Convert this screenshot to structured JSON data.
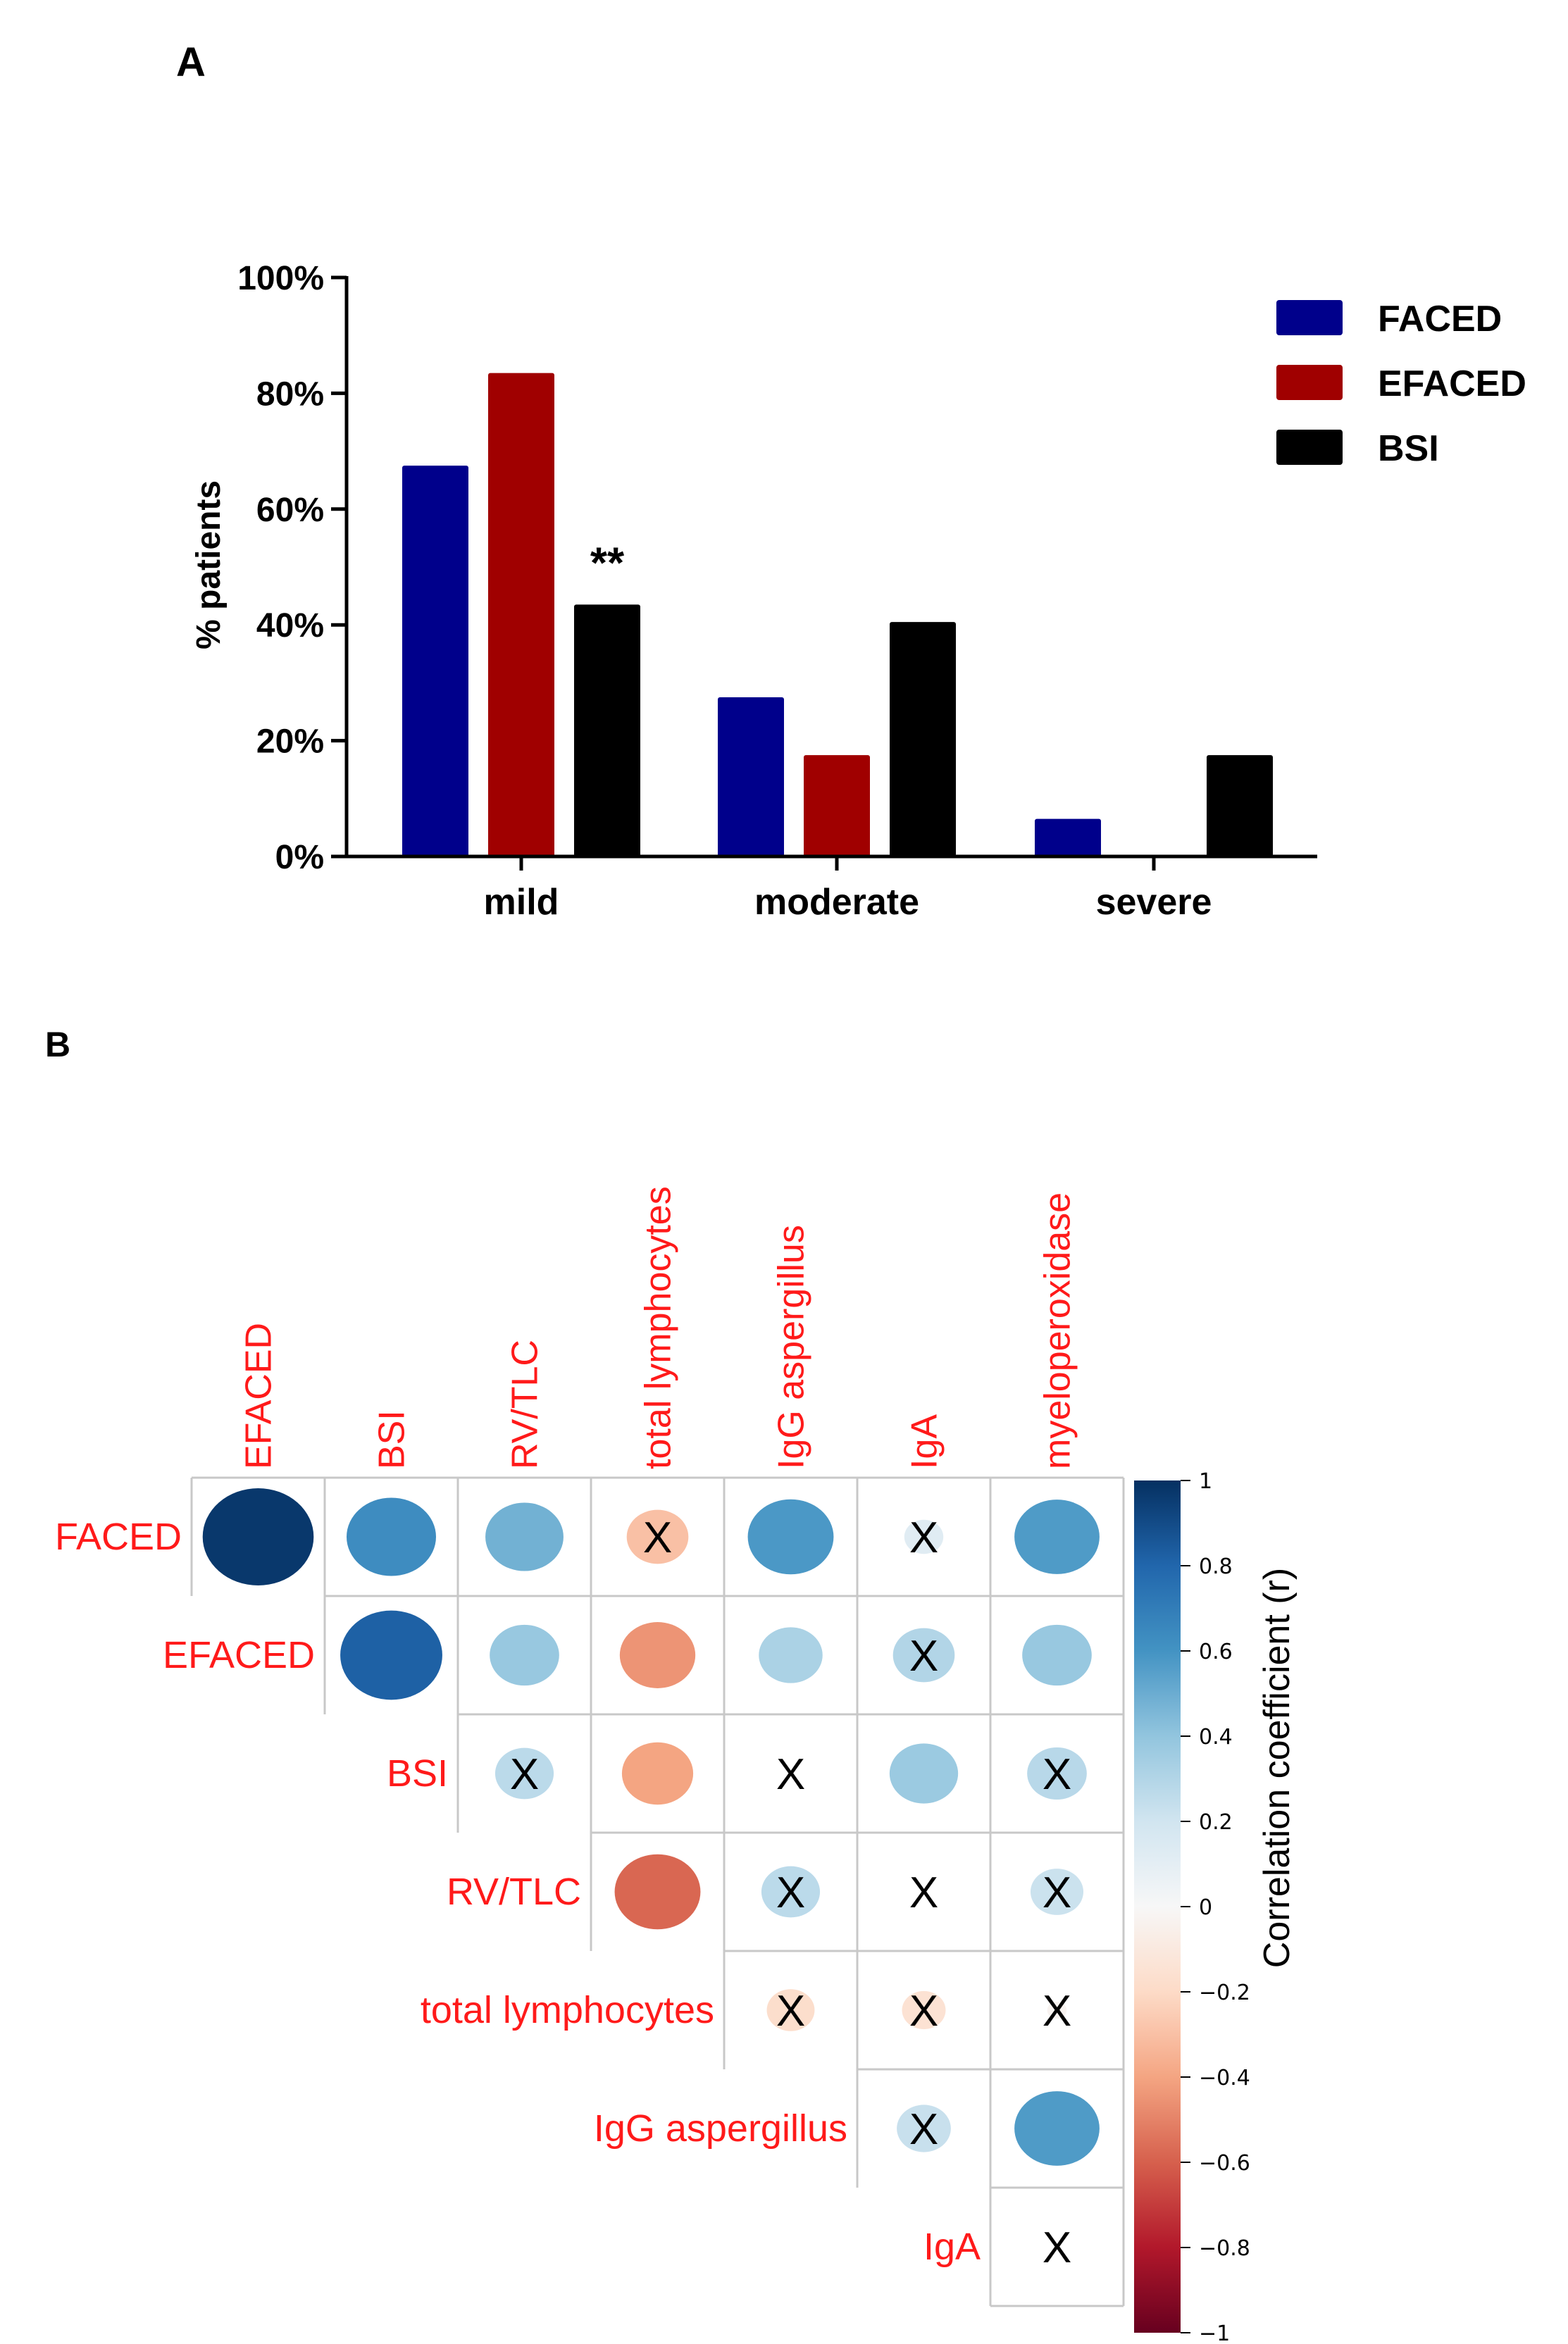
{
  "figure": {
    "panel_a_label": "A",
    "panel_b_label": "B"
  },
  "chart_data": [
    {
      "type": "bar",
      "title": "",
      "categories": [
        "mild",
        "moderate",
        "severe"
      ],
      "series": [
        {
          "name": "FACED",
          "color": "#00008b",
          "values": [
            67.5,
            27.5,
            6.5
          ]
        },
        {
          "name": "EFACED",
          "color": "#a00000",
          "values": [
            83.5,
            17.5,
            0
          ]
        },
        {
          "name": "BSI",
          "color": "#000000",
          "values": [
            43.5,
            40.5,
            17.5
          ]
        }
      ],
      "xlabel": "",
      "ylabel": "% patients",
      "ylim": [
        0,
        100
      ],
      "yticks": [
        "0%",
        "20%",
        "40%",
        "60%",
        "80%",
        "100%"
      ],
      "annotations": [
        {
          "category": "mild",
          "series": "BSI",
          "text": "**"
        }
      ],
      "legend_position": "top-right"
    },
    {
      "type": "heatmap",
      "subtype": "correlation-upper-triangle",
      "row_labels": [
        "FACED",
        "EFACED",
        "BSI",
        "RV/TLC",
        "total lymphocytes",
        "IgG aspergillus",
        "IgA"
      ],
      "col_labels": [
        "EFACED",
        "BSI",
        "RV/TLC",
        "total lymphocytes",
        "IgG aspergillus",
        "IgA",
        "myeloperoxidase"
      ],
      "cells": [
        [
          {
            "r": 0.97,
            "sig": true
          },
          {
            "r": 0.63,
            "sig": true
          },
          {
            "r": 0.48,
            "sig": true
          },
          {
            "r": -0.3,
            "sig": false
          },
          {
            "r": 0.58,
            "sig": true
          },
          {
            "r": 0.12,
            "sig": false
          },
          {
            "r": 0.57,
            "sig": true
          }
        ],
        [
          null,
          {
            "r": 0.82,
            "sig": true
          },
          {
            "r": 0.38,
            "sig": true
          },
          {
            "r": -0.45,
            "sig": true
          },
          {
            "r": 0.32,
            "sig": true
          },
          {
            "r": 0.3,
            "sig": false
          },
          {
            "r": 0.38,
            "sig": true
          }
        ],
        [
          null,
          null,
          {
            "r": 0.27,
            "sig": false
          },
          {
            "r": -0.4,
            "sig": true
          },
          {
            "r": 0.0,
            "sig": false
          },
          {
            "r": 0.37,
            "sig": true
          },
          {
            "r": 0.28,
            "sig": false
          }
        ],
        [
          null,
          null,
          null,
          {
            "r": -0.58,
            "sig": true
          },
          {
            "r": 0.27,
            "sig": false
          },
          {
            "r": 0.0,
            "sig": false
          },
          {
            "r": 0.22,
            "sig": false
          }
        ],
        [
          null,
          null,
          null,
          null,
          {
            "r": -0.18,
            "sig": false
          },
          {
            "r": -0.15,
            "sig": false
          },
          {
            "r": -0.03,
            "sig": false
          }
        ],
        [
          null,
          null,
          null,
          null,
          null,
          {
            "r": 0.23,
            "sig": false
          },
          {
            "r": 0.57,
            "sig": true
          }
        ],
        [
          null,
          null,
          null,
          null,
          null,
          null,
          {
            "r": 0.0,
            "sig": false
          }
        ]
      ],
      "non_significant_marker": "X",
      "colorbar": {
        "title": "Correlation coefficient (r)",
        "range": [
          -1,
          1
        ],
        "ticks": [
          "1",
          "0.8",
          "0.6",
          "0.4",
          "0.2",
          "0",
          "−0.2",
          "−0.4",
          "−0.6",
          "−0.8",
          "−1"
        ]
      }
    }
  ]
}
